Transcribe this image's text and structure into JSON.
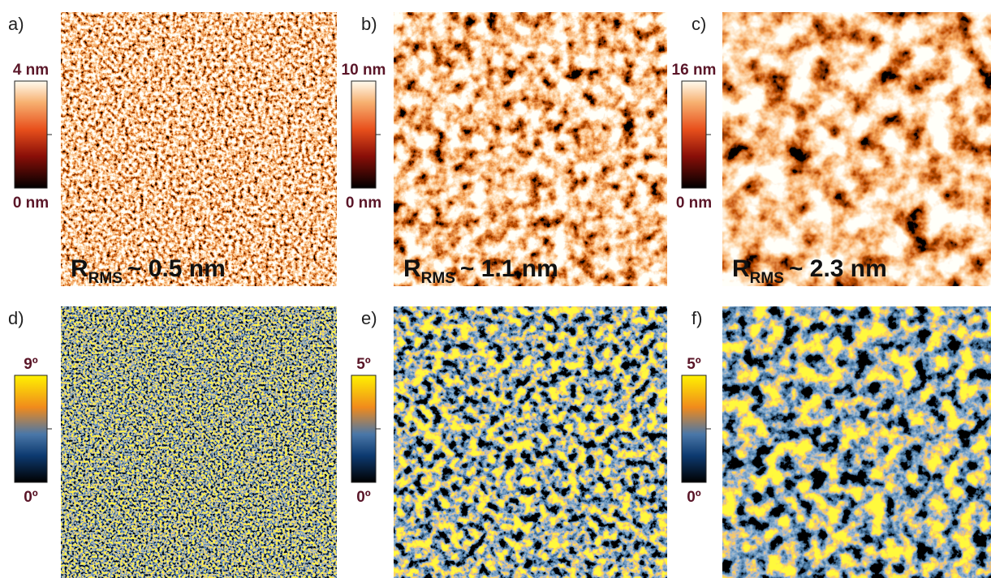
{
  "panels": [
    {
      "label": "a)",
      "scale_max": "4 nm",
      "scale_min": "0 nm",
      "annotation": {
        "symbol": "R",
        "subscript": "RMS",
        "text": "~ 0.5 nm"
      }
    },
    {
      "label": "b)",
      "scale_max": "10 nm",
      "scale_min": "0 nm",
      "annotation": {
        "symbol": "R",
        "subscript": "RMS",
        "text": "~ 1.1 nm"
      }
    },
    {
      "label": "c)",
      "scale_max": "16 nm",
      "scale_min": "0 nm",
      "annotation": {
        "symbol": "R",
        "subscript": "RMS",
        "text": "~ 2.3 nm"
      }
    },
    {
      "label": "d)",
      "scale_max": "9º",
      "scale_min": "0º"
    },
    {
      "label": "e)",
      "scale_max": "5º",
      "scale_min": "0º"
    },
    {
      "label": "f)",
      "scale_max": "5º",
      "scale_min": "0º"
    }
  ]
}
